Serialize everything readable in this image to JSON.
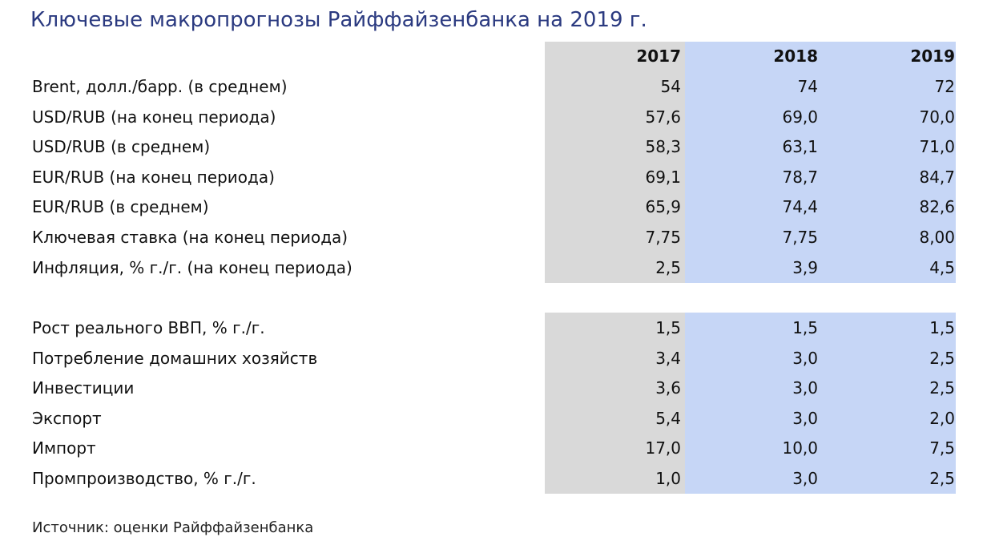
{
  "title": "Ключевые макропрогнозы Райффайзенбанка на 2019 г.",
  "table": {
    "columns": [
      "2017",
      "2018",
      "2019"
    ],
    "groups": [
      {
        "rows": [
          {
            "label": "Brent, долл./барр. (в среднем)",
            "values": [
              "54",
              "74",
              "72"
            ]
          },
          {
            "label": "USD/RUB (на конец периода)",
            "values": [
              "57,6",
              "69,0",
              "70,0"
            ]
          },
          {
            "label": "USD/RUB (в среднем)",
            "values": [
              "58,3",
              "63,1",
              "71,0"
            ]
          },
          {
            "label": "EUR/RUB (на конец периода)",
            "values": [
              "69,1",
              "78,7",
              "84,7"
            ]
          },
          {
            "label": "EUR/RUB (в среднем)",
            "values": [
              "65,9",
              "74,4",
              "82,6"
            ]
          },
          {
            "label": "Ключевая ставка (на конец периода)",
            "values": [
              "7,75",
              "7,75",
              "8,00"
            ]
          },
          {
            "label": "Инфляция, % г./г. (на конец периода)",
            "values": [
              "2,5",
              "3,9",
              "4,5"
            ]
          }
        ]
      },
      {
        "rows": [
          {
            "label": "Рост реального ВВП, % г./г.",
            "values": [
              "1,5",
              "1,5",
              "1,5"
            ]
          },
          {
            "label": "Потребление домашних хозяйств",
            "values": [
              "3,4",
              "3,0",
              "2,5"
            ]
          },
          {
            "label": "Инвестиции",
            "values": [
              "3,6",
              "3,0",
              "2,5"
            ]
          },
          {
            "label": "Экспорт",
            "values": [
              "5,4",
              "3,0",
              "2,0"
            ]
          },
          {
            "label": "Импорт",
            "values": [
              "17,0",
              "10,0",
              "7,5"
            ]
          },
          {
            "label": "Промпроизводство, % г./г.",
            "values": [
              "1,0",
              "3,0",
              "2,5"
            ]
          }
        ]
      }
    ]
  },
  "source": "Источник: оценки Райффайзенбанка"
}
